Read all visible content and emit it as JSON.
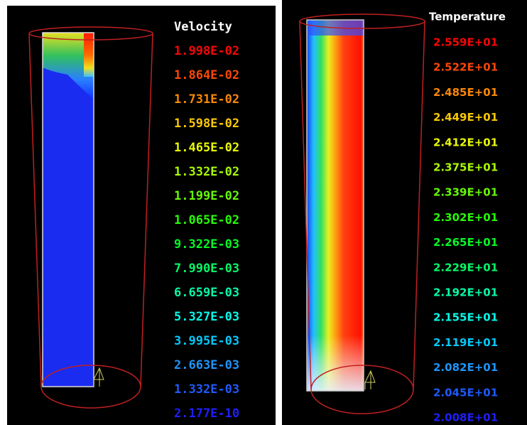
{
  "panels": [
    {
      "title": "Velocity",
      "legend": [
        "1.998E-02",
        "1.864E-02",
        "1.731E-02",
        "1.598E-02",
        "1.465E-02",
        "1.332E-02",
        "1.199E-02",
        "1.065E-02",
        "9.322E-03",
        "7.990E-03",
        "6.659E-03",
        "5.327E-03",
        "3.995E-03",
        "2.663E-03",
        "1.332E-03",
        "2.177E-10"
      ]
    },
    {
      "title": "Temperature",
      "legend": [
        "2.559E+01",
        "2.522E+01",
        "2.485E+01",
        "2.449E+01",
        "2.412E+01",
        "2.375E+01",
        "2.339E+01",
        "2.302E+01",
        "2.265E+01",
        "2.229E+01",
        "2.192E+01",
        "2.155E+01",
        "2.119E+01",
        "2.082E+01",
        "2.045E+01",
        "2.008E+01"
      ]
    }
  ]
}
